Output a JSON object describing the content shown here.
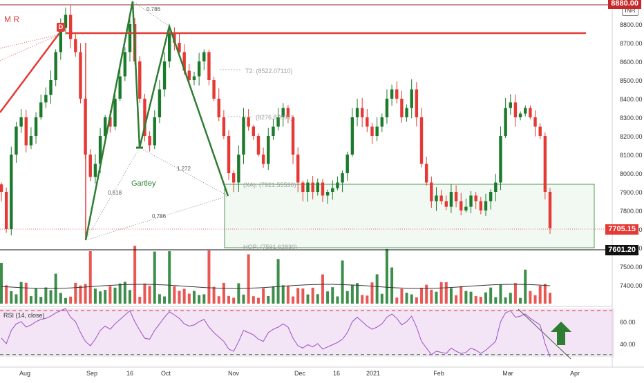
{
  "symbol_label": "M R",
  "currency_badge": "INR",
  "d_badge": "D",
  "rsi_title": "RSI (14, close)",
  "gartley_label": "Gartley",
  "labels": {
    "r0786_top": "0.786",
    "r0618": "0.618",
    "r1272": "1.272",
    "r0786_bottom": "0.786",
    "t2": "T2: (8522.07110)",
    "t1": "(8276.87895)",
    "xa": "(XA): (7921.55530)",
    "hop": "HOP: (7591.62830)"
  },
  "price_tags": {
    "current": "7705.15",
    "support": "7601.20",
    "top": "8880.00"
  },
  "colors": {
    "up": "#1b7a2b",
    "down": "#e53935",
    "pattern": "#2e7d32",
    "resistance": "#e53935",
    "rsi_line": "#9c4dcc",
    "rsi_band": "#f3e5f5",
    "zone_fill": "#e8f5e9",
    "arrow": "#2e7d32"
  },
  "chart_data": [
    {
      "type": "candlestick",
      "x_ticks": [
        "Aug",
        "Sep",
        "16",
        "Oct",
        "Nov",
        "Dec",
        "16",
        "2021",
        "Feb",
        "Mar",
        "Apr"
      ],
      "y_ticks": [
        "8800.00",
        "8700.00",
        "8600.00",
        "8500.00",
        "8400.00",
        "8300.00",
        "8200.00",
        "8100.00",
        "8000.00",
        "7900.00",
        "7800.00",
        "7700.00",
        "7600.00",
        "7500.00",
        "7400.00"
      ],
      "ylim": [
        7300,
        8900
      ],
      "current_price": 7705.15,
      "support_level": 7601.2,
      "resistance_level": 8750,
      "top_level": 8880,
      "closes": [
        7900,
        7700,
        8100,
        8250,
        8300,
        8150,
        8200,
        8300,
        8380,
        8420,
        8500,
        8650,
        8780,
        8850,
        8720,
        8650,
        8400,
        8100,
        7980,
        8050,
        8200,
        8300,
        8250,
        8400,
        8520,
        8650,
        8800,
        8600,
        8400,
        8200,
        8150,
        8300,
        8450,
        8600,
        8750,
        8700,
        8650,
        8550,
        8500,
        8520,
        8600,
        8650,
        8500,
        8400,
        8300,
        8200,
        8000,
        7950,
        8100,
        8300,
        8250,
        8200,
        8100,
        8050,
        8200,
        8250,
        8300,
        8350,
        8300,
        8100,
        7950,
        7900,
        7950,
        7900,
        7950,
        7880,
        7900,
        7920,
        7950,
        8000,
        8100,
        8300,
        8350,
        8300,
        8250,
        8200,
        8250,
        8300,
        8400,
        8450,
        8400,
        8300,
        8350,
        8450,
        8300,
        8050,
        7950,
        7850,
        7880,
        7850,
        7820,
        7900,
        7850,
        7800,
        7820,
        7880,
        7850,
        7800,
        7850,
        7900,
        7950,
        8200,
        8350,
        8380,
        8300,
        8320,
        8350,
        8300,
        8250,
        8200,
        7900,
        7705
      ],
      "volume_avg": 7400
    },
    {
      "type": "line",
      "name": "RSI (14, close)",
      "y_ticks": [
        "60.00",
        "40.00"
      ],
      "ylim": [
        28,
        72
      ],
      "bands": [
        70,
        30
      ],
      "values": [
        45,
        40,
        52,
        58,
        60,
        55,
        57,
        60,
        62,
        63,
        65,
        68,
        70,
        72,
        64,
        60,
        50,
        42,
        38,
        44,
        52,
        56,
        53,
        58,
        62,
        66,
        70,
        60,
        52,
        45,
        44,
        52,
        58,
        64,
        69,
        66,
        63,
        58,
        56,
        57,
        60,
        62,
        55,
        50,
        46,
        42,
        35,
        33,
        42,
        52,
        50,
        48,
        44,
        42,
        50,
        53,
        55,
        58,
        55,
        45,
        38,
        36,
        39,
        37,
        40,
        35,
        37,
        39,
        41,
        44,
        50,
        60,
        64,
        60,
        56,
        53,
        55,
        58,
        64,
        67,
        63,
        57,
        60,
        65,
        55,
        42,
        36,
        30,
        33,
        32,
        31,
        36,
        33,
        31,
        32,
        36,
        34,
        31,
        34,
        38,
        42,
        60,
        68,
        70,
        64,
        65,
        67,
        63,
        60,
        57,
        40,
        28
      ]
    }
  ]
}
